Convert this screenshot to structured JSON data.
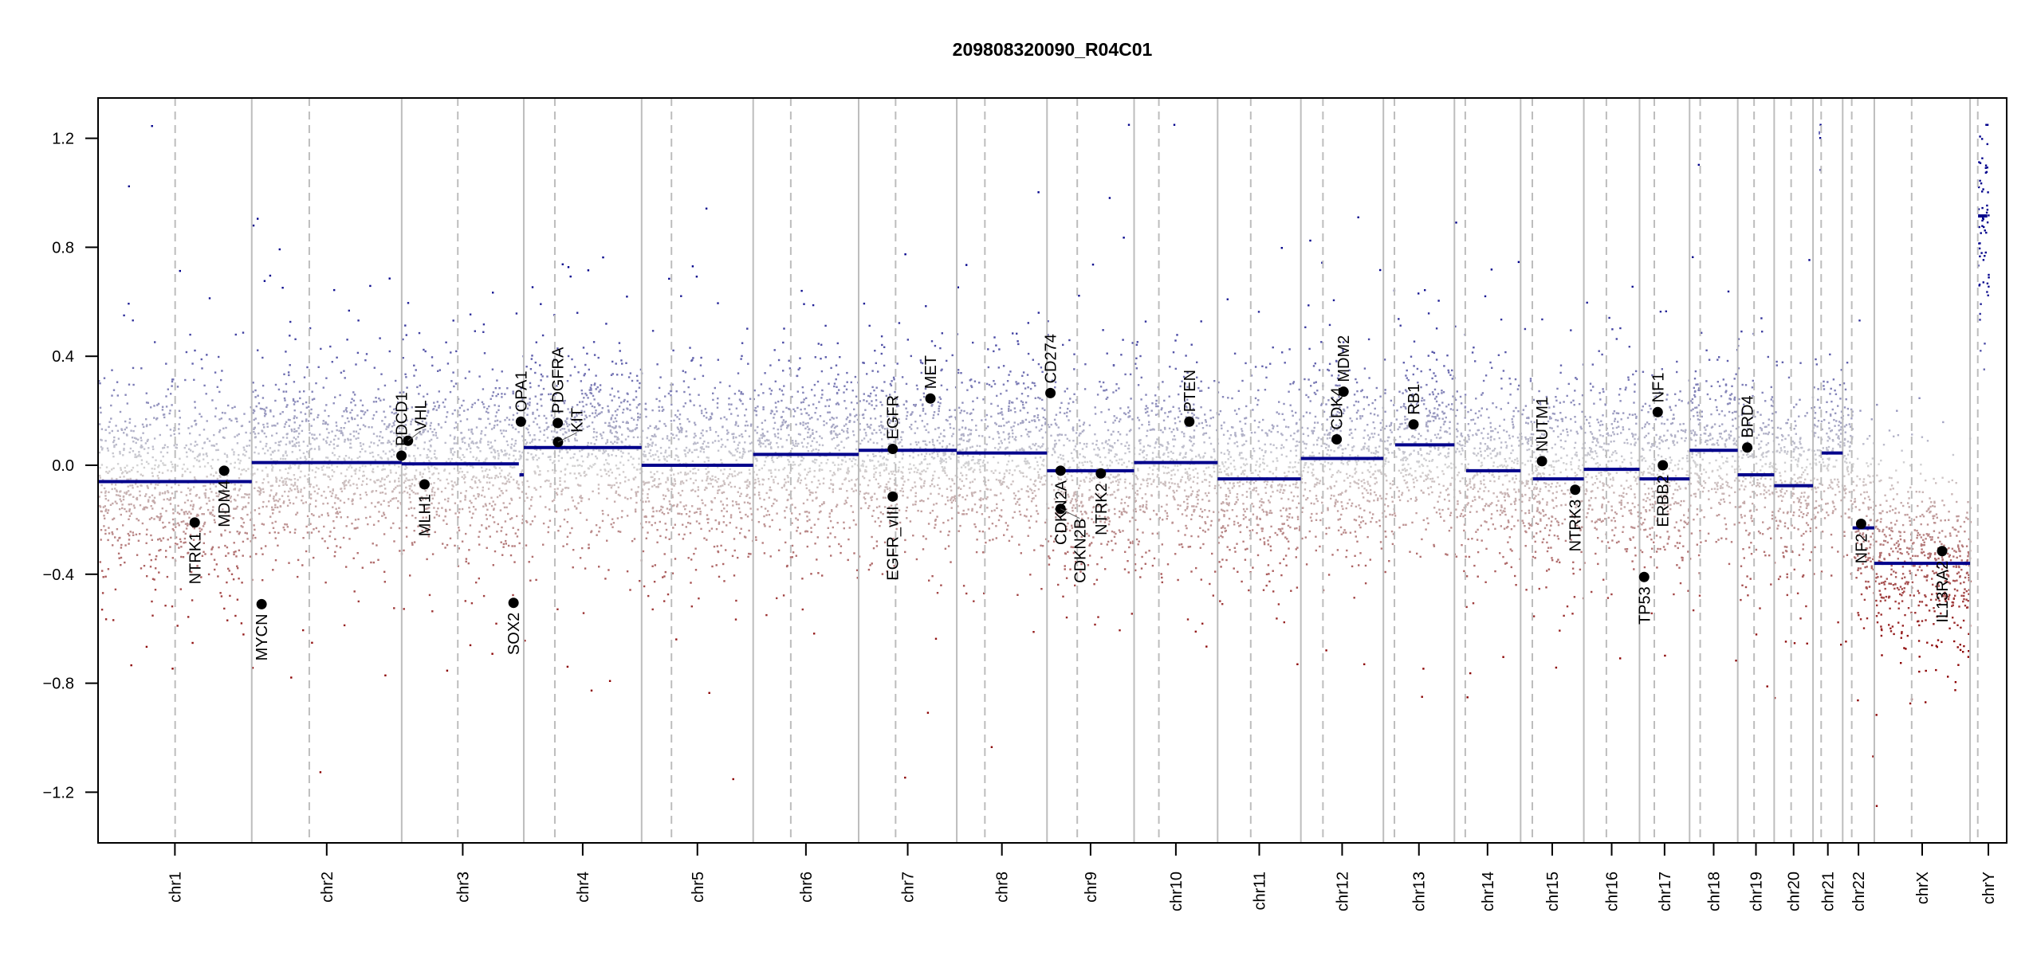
{
  "chart_data": {
    "type": "scatter",
    "title": "209808320090_R04C01",
    "xlabel": "",
    "ylabel": "",
    "ylim": [
      -1.35,
      1.35
    ],
    "yticks": [
      -1.2,
      -0.8,
      -0.4,
      0.0,
      0.4,
      0.8,
      1.2
    ],
    "ytick_labels": [
      "−1.2",
      "−0.8",
      "−0.4",
      "0.0",
      "0.4",
      "0.8",
      "1.2"
    ],
    "colors": {
      "segment": "#00008b",
      "gain": "#00008b",
      "neutral": "#d3d3d3",
      "loss": "#8b0000",
      "boundary": "#bdbdbd",
      "gene": "#000000"
    },
    "probe_noise_sd": 0.17,
    "chromosomes": [
      {
        "name": "chr1",
        "length_mb": 249.25,
        "centromere_mb": 125.0
      },
      {
        "name": "chr2",
        "length_mb": 243.2,
        "centromere_mb": 93.3
      },
      {
        "name": "chr3",
        "length_mb": 198.0,
        "centromere_mb": 91.0
      },
      {
        "name": "chr4",
        "length_mb": 191.15,
        "centromere_mb": 50.4
      },
      {
        "name": "chr5",
        "length_mb": 180.9,
        "centromere_mb": 48.4
      },
      {
        "name": "chr6",
        "length_mb": 171.1,
        "centromere_mb": 61.0
      },
      {
        "name": "chr7",
        "length_mb": 159.1,
        "centromere_mb": 59.9
      },
      {
        "name": "chr8",
        "length_mb": 146.4,
        "centromere_mb": 45.6
      },
      {
        "name": "chr9",
        "length_mb": 141.2,
        "centromere_mb": 49.0
      },
      {
        "name": "chr10",
        "length_mb": 135.5,
        "centromere_mb": 40.2
      },
      {
        "name": "chr11",
        "length_mb": 135.0,
        "centromere_mb": 53.7
      },
      {
        "name": "chr12",
        "length_mb": 133.85,
        "centromere_mb": 35.8
      },
      {
        "name": "chr13",
        "length_mb": 115.2,
        "centromere_mb": 17.9
      },
      {
        "name": "chr14",
        "length_mb": 107.35,
        "centromere_mb": 17.6
      },
      {
        "name": "chr15",
        "length_mb": 102.5,
        "centromere_mb": 19.0
      },
      {
        "name": "chr16",
        "length_mb": 90.35,
        "centromere_mb": 36.6
      },
      {
        "name": "chr17",
        "length_mb": 81.2,
        "centromere_mb": 24.0
      },
      {
        "name": "chr18",
        "length_mb": 78.1,
        "centromere_mb": 17.2
      },
      {
        "name": "chr19",
        "length_mb": 59.1,
        "centromere_mb": 26.5
      },
      {
        "name": "chr20",
        "length_mb": 63.0,
        "centromere_mb": 27.5
      },
      {
        "name": "chr21",
        "length_mb": 48.1,
        "centromere_mb": 13.2
      },
      {
        "name": "chr22",
        "length_mb": 51.3,
        "centromere_mb": 14.7
      },
      {
        "name": "chrX",
        "length_mb": 155.3,
        "centromere_mb": 60.6
      },
      {
        "name": "chrY",
        "length_mb": 59.4,
        "centromere_mb": 12.5
      }
    ],
    "segments": [
      {
        "chrom": "chr1",
        "start": 0,
        "end": 249.25,
        "value": -0.06
      },
      {
        "chrom": "chr2",
        "start": 0,
        "end": 243.2,
        "value": 0.01
      },
      {
        "chrom": "chr3",
        "start": 0,
        "end": 190,
        "value": 0.005
      },
      {
        "chrom": "chr3",
        "start": 191,
        "end": 198,
        "value": -0.035
      },
      {
        "chrom": "chr4",
        "start": 0,
        "end": 191.15,
        "value": 0.065
      },
      {
        "chrom": "chr5",
        "start": 0,
        "end": 180.9,
        "value": 0.0
      },
      {
        "chrom": "chr6",
        "start": 0,
        "end": 171.1,
        "value": 0.04
      },
      {
        "chrom": "chr7",
        "start": 0,
        "end": 159.1,
        "value": 0.055
      },
      {
        "chrom": "chr8",
        "start": 0,
        "end": 146.4,
        "value": 0.045
      },
      {
        "chrom": "chr9",
        "start": 0,
        "end": 141.2,
        "value": -0.02
      },
      {
        "chrom": "chr10",
        "start": 0,
        "end": 135.5,
        "value": 0.01
      },
      {
        "chrom": "chr11",
        "start": 0,
        "end": 135.0,
        "value": -0.05
      },
      {
        "chrom": "chr12",
        "start": 0,
        "end": 133.85,
        "value": 0.025
      },
      {
        "chrom": "chr13",
        "start": 19,
        "end": 115.2,
        "value": 0.075
      },
      {
        "chrom": "chr14",
        "start": 19,
        "end": 107.35,
        "value": -0.02
      },
      {
        "chrom": "chr15",
        "start": 20,
        "end": 102.5,
        "value": -0.05
      },
      {
        "chrom": "chr16",
        "start": 0,
        "end": 90.35,
        "value": -0.015
      },
      {
        "chrom": "chr17",
        "start": 0,
        "end": 81.2,
        "value": -0.05
      },
      {
        "chrom": "chr18",
        "start": 0,
        "end": 78.1,
        "value": 0.055
      },
      {
        "chrom": "chr19",
        "start": 0,
        "end": 59.1,
        "value": -0.035
      },
      {
        "chrom": "chr20",
        "start": 0,
        "end": 63.0,
        "value": -0.075
      },
      {
        "chrom": "chr21",
        "start": 9.5,
        "end": 11,
        "value": 1.22
      },
      {
        "chrom": "chr21",
        "start": 14,
        "end": 48.1,
        "value": 0.045
      },
      {
        "chrom": "chr22",
        "start": 16,
        "end": 51.3,
        "value": -0.23
      },
      {
        "chrom": "chrX",
        "start": 0,
        "end": 155.3,
        "value": -0.36
      },
      {
        "chrom": "chrY",
        "start": 13,
        "end": 28,
        "value": 0.915
      }
    ],
    "genes": [
      {
        "name": "NTRK1",
        "chrom": "chr1",
        "pos_mb": 156.8,
        "value": -0.21,
        "label": "below"
      },
      {
        "name": "MDM4",
        "chrom": "chr1",
        "pos_mb": 204.5,
        "value": -0.02,
        "label": "below"
      },
      {
        "name": "MYCN",
        "chrom": "chr2",
        "pos_mb": 16.0,
        "value": -0.51,
        "label": "below"
      },
      {
        "name": "PDCD1",
        "chrom": "chr2",
        "pos_mb": 242.8,
        "value": 0.035,
        "label": "above"
      },
      {
        "name": "VHL",
        "chrom": "chr3",
        "pos_mb": 10.2,
        "value": 0.09,
        "label": "above"
      },
      {
        "name": "MLH1",
        "chrom": "chr3",
        "pos_mb": 37.0,
        "value": -0.07,
        "label": "below"
      },
      {
        "name": "SOX2",
        "chrom": "chr3",
        "pos_mb": 181.4,
        "value": -0.505,
        "label": "below"
      },
      {
        "name": "OPA1",
        "chrom": "chr3",
        "pos_mb": 193.3,
        "value": 0.16,
        "label": "above"
      },
      {
        "name": "PDGFRA",
        "chrom": "chr4",
        "pos_mb": 55.1,
        "value": 0.155,
        "label": "above"
      },
      {
        "name": "KIT",
        "chrom": "chr4",
        "pos_mb": 55.5,
        "value": 0.085,
        "label": "above"
      },
      {
        "name": "EGFR",
        "chrom": "chr7",
        "pos_mb": 55.2,
        "value": 0.06,
        "label": "above"
      },
      {
        "name": "EGFR_vIII",
        "chrom": "chr7",
        "pos_mb": 55.2,
        "value": -0.115,
        "label": "below"
      },
      {
        "name": "MET",
        "chrom": "chr7",
        "pos_mb": 116.4,
        "value": 0.245,
        "label": "above"
      },
      {
        "name": "CD274",
        "chrom": "chr9",
        "pos_mb": 5.5,
        "value": 0.265,
        "label": "above"
      },
      {
        "name": "CDKN2A",
        "chrom": "chr9",
        "pos_mb": 21.97,
        "value": -0.02,
        "label": "below"
      },
      {
        "name": "CDKN2B",
        "chrom": "chr9",
        "pos_mb": 22.0,
        "value": -0.16,
        "label": "below"
      },
      {
        "name": "NTRK2",
        "chrom": "chr9",
        "pos_mb": 87.3,
        "value": -0.03,
        "label": "below"
      },
      {
        "name": "PTEN",
        "chrom": "chr10",
        "pos_mb": 89.6,
        "value": 0.16,
        "label": "above"
      },
      {
        "name": "CDK4",
        "chrom": "chr12",
        "pos_mb": 58.1,
        "value": 0.095,
        "label": "above"
      },
      {
        "name": "MDM2",
        "chrom": "chr12",
        "pos_mb": 69.2,
        "value": 0.27,
        "label": "above"
      },
      {
        "name": "RB1",
        "chrom": "chr13",
        "pos_mb": 48.9,
        "value": 0.15,
        "label": "above"
      },
      {
        "name": "NUTM1",
        "chrom": "chr15",
        "pos_mb": 34.6,
        "value": 0.015,
        "label": "above"
      },
      {
        "name": "NTRK3",
        "chrom": "chr15",
        "pos_mb": 88.5,
        "value": -0.09,
        "label": "below"
      },
      {
        "name": "TP53",
        "chrom": "chr17",
        "pos_mb": 7.5,
        "value": -0.41,
        "label": "below"
      },
      {
        "name": "NF1",
        "chrom": "chr17",
        "pos_mb": 29.5,
        "value": 0.195,
        "label": "above"
      },
      {
        "name": "ERBB2",
        "chrom": "chr17",
        "pos_mb": 37.8,
        "value": 0.0,
        "label": "below"
      },
      {
        "name": "BRD4",
        "chrom": "chr19",
        "pos_mb": 15.4,
        "value": 0.065,
        "label": "above"
      },
      {
        "name": "NF2",
        "chrom": "chr22",
        "pos_mb": 29.9,
        "value": -0.215,
        "label": "below"
      },
      {
        "name": "IL13RA2",
        "chrom": "chrX",
        "pos_mb": 110.0,
        "value": -0.315,
        "label": "below"
      }
    ]
  }
}
